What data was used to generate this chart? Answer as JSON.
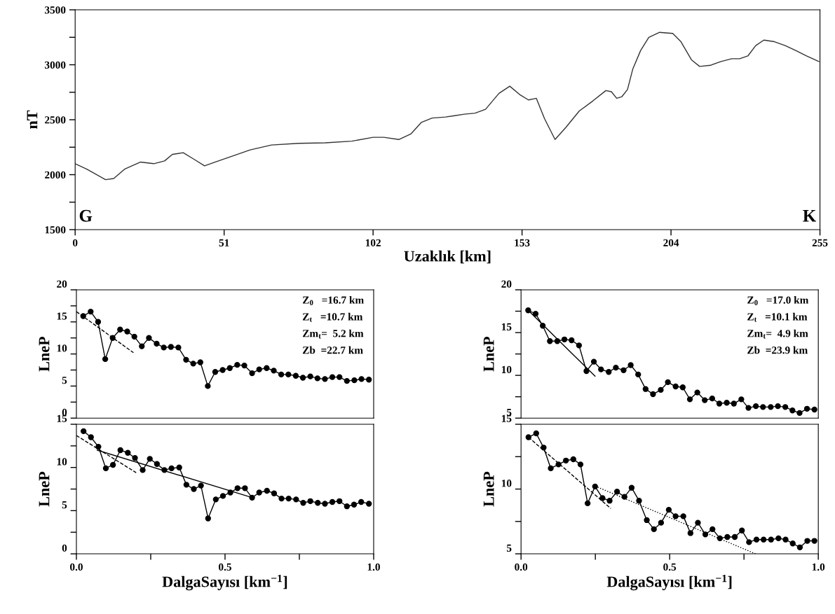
{
  "chart_data": [
    {
      "type": "line",
      "ylabel": "nT",
      "xlabel": "Uzaklık [km]",
      "xlim": [
        0,
        255
      ],
      "xticks": [
        0,
        51,
        102,
        153,
        204,
        255
      ],
      "ylim": [
        1500,
        3500
      ],
      "yticks": [
        1500,
        {
          "value": 1750,
          "label": null
        },
        2000,
        {
          "value": 2250,
          "label": null
        },
        2500,
        {
          "value": 2750,
          "label": null
        },
        3000,
        {
          "value": 3250,
          "label": null
        },
        3500
      ],
      "annotations": [
        "G",
        "K"
      ],
      "series": [
        {
          "color": "#333333",
          "marker": "none",
          "line_style": "solid",
          "x": [
            0,
            4.0,
            10.4,
            13.2,
            16.9,
            22.4,
            26.9,
            30.6,
            33.3,
            37.0,
            40.7,
            44.3,
            48.0,
            54.4,
            59.9,
            67.2,
            76.4,
            85.6,
            94.7,
            102.0,
            105.7,
            110.8,
            114.9,
            118.5,
            122.2,
            126.8,
            129.5,
            133.2,
            136.9,
            140.5,
            145.1,
            148.8,
            152.4,
            155.2,
            157.9,
            160.7,
            164.3,
            168.0,
            172.6,
            177.2,
            181.7,
            183.6,
            185.4,
            187.2,
            189.1,
            190.9,
            193.6,
            196.4,
            200.1,
            204.6,
            207.4,
            211.0,
            213.8,
            217.5,
            221.1,
            224.8,
            227.5,
            230.3,
            233.0,
            235.8,
            239.4,
            243.1,
            246.7,
            250.4,
            254.6
          ],
          "values": [
            2100,
            2050,
            1955,
            1965,
            2050,
            2115,
            2100,
            2125,
            2185,
            2200,
            2140,
            2080,
            2115,
            2175,
            2225,
            2270,
            2285,
            2290,
            2305,
            2340,
            2340,
            2320,
            2370,
            2475,
            2515,
            2525,
            2535,
            2550,
            2560,
            2595,
            2740,
            2805,
            2725,
            2680,
            2695,
            2510,
            2320,
            2430,
            2580,
            2670,
            2765,
            2755,
            2695,
            2710,
            2775,
            2960,
            3130,
            3250,
            3295,
            3285,
            3210,
            3045,
            2985,
            2995,
            3030,
            3055,
            3055,
            3080,
            3175,
            3225,
            3210,
            3175,
            3130,
            3080,
            3030
          ]
        }
      ]
    },
    {
      "type": "line",
      "ylabel": "LneP",
      "xlim": [
        0,
        1
      ],
      "ylim": [
        0,
        20
      ],
      "yticks": [
        0,
        {
          "value": 2.5,
          "label": null
        },
        5,
        {
          "value": 7.5,
          "label": null
        },
        10,
        {
          "value": 12.5,
          "label": null
        },
        15,
        {
          "value": 17.5,
          "label": null
        },
        20
      ],
      "tick_labels": "y",
      "annotations": [
        "Z$_{0}$   =16.7 km",
        "Z$_{t}$   =10.7 km",
        "Zm$_{t}$=  5.2 km",
        "Zb  =22.7 km"
      ],
      "series": [
        {
          "color": "#000000",
          "marker": "circle",
          "line_style": "solid",
          "x": [
            0.023,
            0.048,
            0.073,
            0.097,
            0.122,
            0.147,
            0.171,
            0.195,
            0.22,
            0.244,
            0.27,
            0.294,
            0.318,
            0.343,
            0.369,
            0.393,
            0.417,
            0.442,
            0.467,
            0.492,
            0.516,
            0.541,
            0.565,
            0.591,
            0.615,
            0.64,
            0.664,
            0.689,
            0.713,
            0.738,
            0.762,
            0.787,
            0.811,
            0.836,
            0.861,
            0.885,
            0.91,
            0.935,
            0.959,
            0.984
          ],
          "values": [
            15.9,
            16.6,
            15.0,
            9.2,
            12.5,
            13.8,
            13.5,
            12.7,
            11.2,
            12.5,
            11.6,
            11.0,
            11.1,
            11.0,
            9.1,
            8.5,
            8.7,
            5.0,
            7.2,
            7.5,
            7.8,
            8.3,
            8.2,
            7.0,
            7.6,
            7.8,
            7.4,
            6.8,
            6.8,
            6.6,
            6.3,
            6.5,
            6.2,
            6.1,
            6.4,
            6.4,
            5.8,
            5.9,
            6.1,
            6.0
          ]
        },
        {
          "color": "#000000",
          "marker": "none",
          "line_style": "dashed",
          "x": [
            0,
            0.192
          ],
          "values": [
            16.6,
            10.2
          ]
        }
      ]
    },
    {
      "type": "line",
      "ylabel": "LneP",
      "xlim": [
        0,
        1
      ],
      "ylim": [
        5,
        20
      ],
      "yticks": [
        5,
        {
          "value": 7.5,
          "label": null
        },
        10,
        {
          "value": 12.5,
          "label": null
        },
        15,
        {
          "value": 17.5,
          "label": null
        },
        20
      ],
      "tick_labels": "y",
      "annotations": [
        "Z$_{0}$   =17.0 km",
        "Z$_{t}$   =10.1 km",
        "Zm$_{t}$=  4.9 km",
        "Zb  =23.9 km"
      ],
      "series": [
        {
          "color": "#000000",
          "marker": "circle",
          "line_style": "solid",
          "x": [
            0.024,
            0.049,
            0.073,
            0.097,
            0.122,
            0.146,
            0.17,
            0.195,
            0.22,
            0.245,
            0.269,
            0.295,
            0.319,
            0.345,
            0.369,
            0.394,
            0.419,
            0.444,
            0.47,
            0.494,
            0.52,
            0.544,
            0.568,
            0.593,
            0.618,
            0.643,
            0.667,
            0.692,
            0.716,
            0.741,
            0.765,
            0.79,
            0.814,
            0.84,
            0.864,
            0.889,
            0.913,
            0.937,
            0.962,
            0.987
          ],
          "values": [
            17.6,
            17.2,
            15.8,
            14.0,
            14.0,
            14.2,
            14.1,
            13.5,
            10.5,
            11.6,
            10.7,
            10.4,
            10.9,
            10.6,
            11.2,
            10.1,
            8.4,
            7.8,
            8.3,
            9.2,
            8.7,
            8.6,
            7.2,
            8.0,
            7.1,
            7.3,
            6.7,
            6.8,
            6.7,
            7.2,
            6.2,
            6.4,
            6.3,
            6.3,
            6.4,
            6.3,
            5.9,
            5.6,
            6.1,
            6.0
          ]
        },
        {
          "color": "#000000",
          "marker": "none",
          "line_style": "solid",
          "x": [
            0.024,
            0.249
          ],
          "values": [
            17.6,
            9.9
          ]
        }
      ]
    },
    {
      "type": "line",
      "ylabel": "LneP",
      "xlabel": "DalgaSayısı [km$^{−1}$]",
      "xlim": [
        0,
        1
      ],
      "xticks": [
        {
          "value": 0,
          "label": "0.0"
        },
        {
          "value": 0.25,
          "label": null
        },
        0.5,
        {
          "value": 0.75,
          "label": null
        },
        {
          "value": 1,
          "label": "1.0"
        }
      ],
      "ylim": [
        0,
        15
      ],
      "yticks": [
        0,
        {
          "value": 2.5,
          "label": null
        },
        5,
        {
          "value": 7.5,
          "label": null
        },
        10,
        {
          "value": 12.5,
          "label": null
        },
        15
      ],
      "series": [
        {
          "color": "#000000",
          "marker": "circle",
          "line_style": "solid",
          "x": [
            0.024,
            0.049,
            0.074,
            0.099,
            0.123,
            0.148,
            0.173,
            0.197,
            0.223,
            0.247,
            0.271,
            0.296,
            0.32,
            0.346,
            0.37,
            0.395,
            0.419,
            0.443,
            0.469,
            0.493,
            0.518,
            0.542,
            0.567,
            0.591,
            0.615,
            0.641,
            0.665,
            0.69,
            0.714,
            0.739,
            0.763,
            0.787,
            0.812,
            0.836,
            0.861,
            0.885,
            0.91,
            0.934,
            0.958,
            0.984
          ],
          "values": [
            14.2,
            13.5,
            12.4,
            9.9,
            10.3,
            12.0,
            11.7,
            11.1,
            9.7,
            11.0,
            10.4,
            9.7,
            9.9,
            10.0,
            8.0,
            7.5,
            7.9,
            4.1,
            6.3,
            6.7,
            7.1,
            7.6,
            7.6,
            6.5,
            7.1,
            7.3,
            7.0,
            6.4,
            6.4,
            6.3,
            5.9,
            6.1,
            5.9,
            5.8,
            6.0,
            6.1,
            5.5,
            5.7,
            6.0,
            5.8
          ]
        },
        {
          "color": "#000000",
          "marker": "none",
          "line_style": "dashed",
          "x": [
            0,
            0.201
          ],
          "values": [
            13.7,
            9.4
          ]
        },
        {
          "color": "#000000",
          "marker": "none",
          "line_style": "solid",
          "x": [
            0.07,
            0.593
          ],
          "values": [
            12.0,
            6.5
          ]
        }
      ]
    },
    {
      "type": "line",
      "ylabel": "LneP",
      "xlabel": "DalgaSayısı [km$^{−1}$]",
      "xlim": [
        0,
        1
      ],
      "xticks": [
        {
          "value": 0,
          "label": "0.0"
        },
        {
          "value": 0.25,
          "label": null
        },
        0.5,
        {
          "value": 0.75,
          "label": null
        },
        {
          "value": 1,
          "label": "1.0"
        }
      ],
      "ylim": [
        5,
        15
      ],
      "yticks": [
        5,
        {
          "value": 7.5,
          "label": null
        },
        10,
        {
          "value": 12.5,
          "label": null
        },
        15
      ],
      "series": [
        {
          "color": "#000000",
          "marker": "circle",
          "line_style": "solid",
          "x": [
            0.025,
            0.051,
            0.076,
            0.1,
            0.126,
            0.151,
            0.176,
            0.2,
            0.224,
            0.249,
            0.274,
            0.298,
            0.323,
            0.348,
            0.372,
            0.397,
            0.423,
            0.447,
            0.471,
            0.497,
            0.52,
            0.546,
            0.57,
            0.595,
            0.62,
            0.644,
            0.669,
            0.694,
            0.719,
            0.743,
            0.767,
            0.792,
            0.816,
            0.841,
            0.866,
            0.89,
            0.914,
            0.938,
            0.963,
            0.987
          ],
          "values": [
            14.0,
            14.3,
            13.2,
            11.6,
            11.9,
            12.2,
            12.3,
            11.9,
            8.9,
            10.2,
            9.3,
            9.1,
            9.8,
            9.4,
            10.1,
            9.1,
            7.6,
            6.9,
            7.4,
            8.4,
            7.9,
            7.9,
            6.6,
            7.4,
            6.5,
            6.9,
            6.2,
            6.3,
            6.3,
            6.8,
            5.9,
            6.1,
            6.1,
            6.1,
            6.2,
            6.1,
            5.8,
            5.5,
            6.0,
            6.0
          ]
        },
        {
          "color": "#000000",
          "marker": "none",
          "line_style": "dashed",
          "x": [
            0.025,
            0.302
          ],
          "values": [
            14.0,
            8.5
          ]
        },
        {
          "color": "#000000",
          "marker": "none",
          "line_style": "dotted",
          "x": [
            0.242,
            0.789
          ],
          "values": [
            10.3,
            5.0
          ]
        }
      ]
    }
  ]
}
